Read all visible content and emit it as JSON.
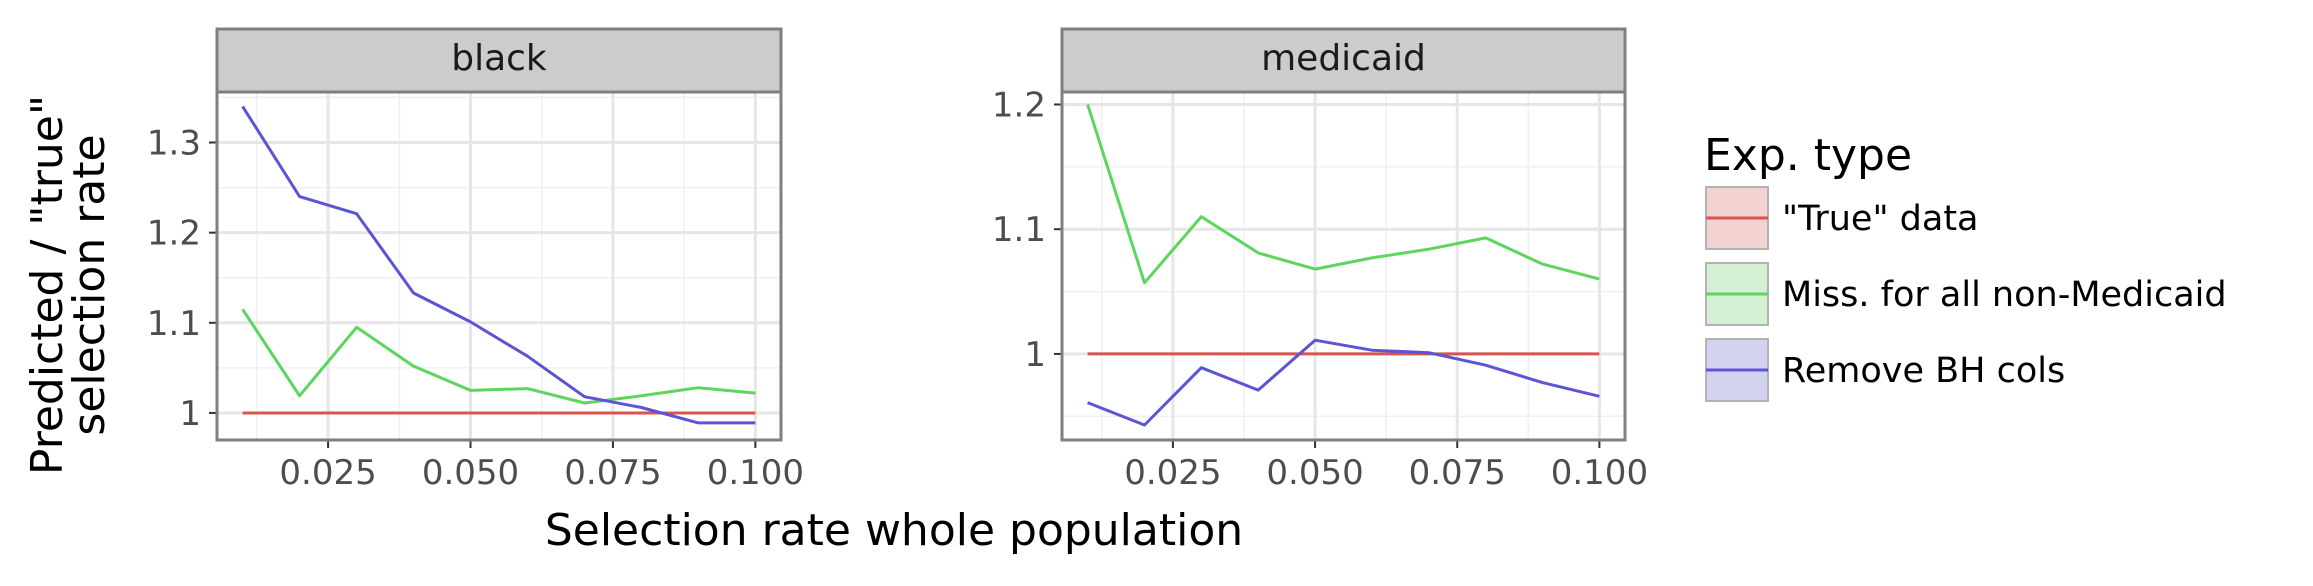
{
  "chart_data": {
    "type": "line",
    "xlabel": "Selection rate whole population",
    "ylabel_lines": [
      "Predicted / \"true\"",
      "selection rate"
    ],
    "legend": {
      "title": "Exp. type",
      "placement": "right",
      "entries": [
        {
          "name": "\"True\" data",
          "color": "#d9534f",
          "fill": "#f2d3d2"
        },
        {
          "name": "Miss. for all non-Medicaid",
          "color": "#5cd65c",
          "fill": "#d4efd4"
        },
        {
          "name": "Remove BH cols",
          "color": "#5b55d6",
          "fill": "#d3d2f0"
        }
      ]
    },
    "x_ticks": [
      0.025,
      0.05,
      0.075,
      0.1
    ],
    "x_tick_labels": [
      "0.025",
      "0.050",
      "0.075",
      "0.100"
    ],
    "xlim": [
      0.0055,
      0.1045
    ],
    "grid": true,
    "panels": [
      {
        "strip": "black",
        "ylim": [
          0.97,
          1.356
        ],
        "y_ticks": [
          1.0,
          1.1,
          1.2,
          1.3
        ],
        "y_tick_labels": [
          "1",
          "1.1",
          "1.2",
          "1.3"
        ],
        "series": [
          {
            "name": "\"True\" data",
            "x": [
              0.01,
              0.02,
              0.03,
              0.04,
              0.05,
              0.06,
              0.07,
              0.08,
              0.09,
              0.1
            ],
            "y": [
              1.0,
              1.0,
              1.0,
              1.0,
              1.0,
              1.0,
              1.0,
              1.0,
              1.0,
              1.0
            ]
          },
          {
            "name": "Miss. for all non-Medicaid",
            "x": [
              0.01,
              0.02,
              0.03,
              0.04,
              0.05,
              0.06,
              0.07,
              0.08,
              0.09,
              0.1
            ],
            "y": [
              1.115,
              1.019,
              1.095,
              1.052,
              1.025,
              1.027,
              1.011,
              1.019,
              1.028,
              1.022
            ]
          },
          {
            "name": "Remove BH cols",
            "x": [
              0.01,
              0.02,
              0.03,
              0.04,
              0.05,
              0.06,
              0.07,
              0.08,
              0.09,
              0.1
            ],
            "y": [
              1.34,
              1.24,
              1.221,
              1.133,
              1.101,
              1.063,
              1.018,
              1.006,
              0.989,
              0.989
            ]
          }
        ]
      },
      {
        "strip": "medicaid",
        "ylim": [
          0.931,
          1.21
        ],
        "y_ticks": [
          1.0,
          1.1,
          1.2
        ],
        "y_tick_labels": [
          "1",
          "1.1",
          "1.2"
        ],
        "series": [
          {
            "name": "\"True\" data",
            "x": [
              0.01,
              0.02,
              0.03,
              0.04,
              0.05,
              0.06,
              0.07,
              0.08,
              0.09,
              0.1
            ],
            "y": [
              1.0,
              1.0,
              1.0,
              1.0,
              1.0,
              1.0,
              1.0,
              1.0,
              1.0,
              1.0
            ]
          },
          {
            "name": "Miss. for all non-Medicaid",
            "x": [
              0.01,
              0.02,
              0.03,
              0.04,
              0.05,
              0.06,
              0.07,
              0.08,
              0.09,
              0.1
            ],
            "y": [
              1.2,
              1.057,
              1.11,
              1.081,
              1.068,
              1.077,
              1.084,
              1.093,
              1.072,
              1.06
            ]
          },
          {
            "name": "Remove BH cols",
            "x": [
              0.01,
              0.02,
              0.03,
              0.04,
              0.05,
              0.06,
              0.07,
              0.08,
              0.09,
              0.1
            ],
            "y": [
              0.961,
              0.943,
              0.989,
              0.971,
              1.011,
              1.003,
              1.001,
              0.991,
              0.977,
              0.966
            ]
          }
        ]
      }
    ]
  }
}
